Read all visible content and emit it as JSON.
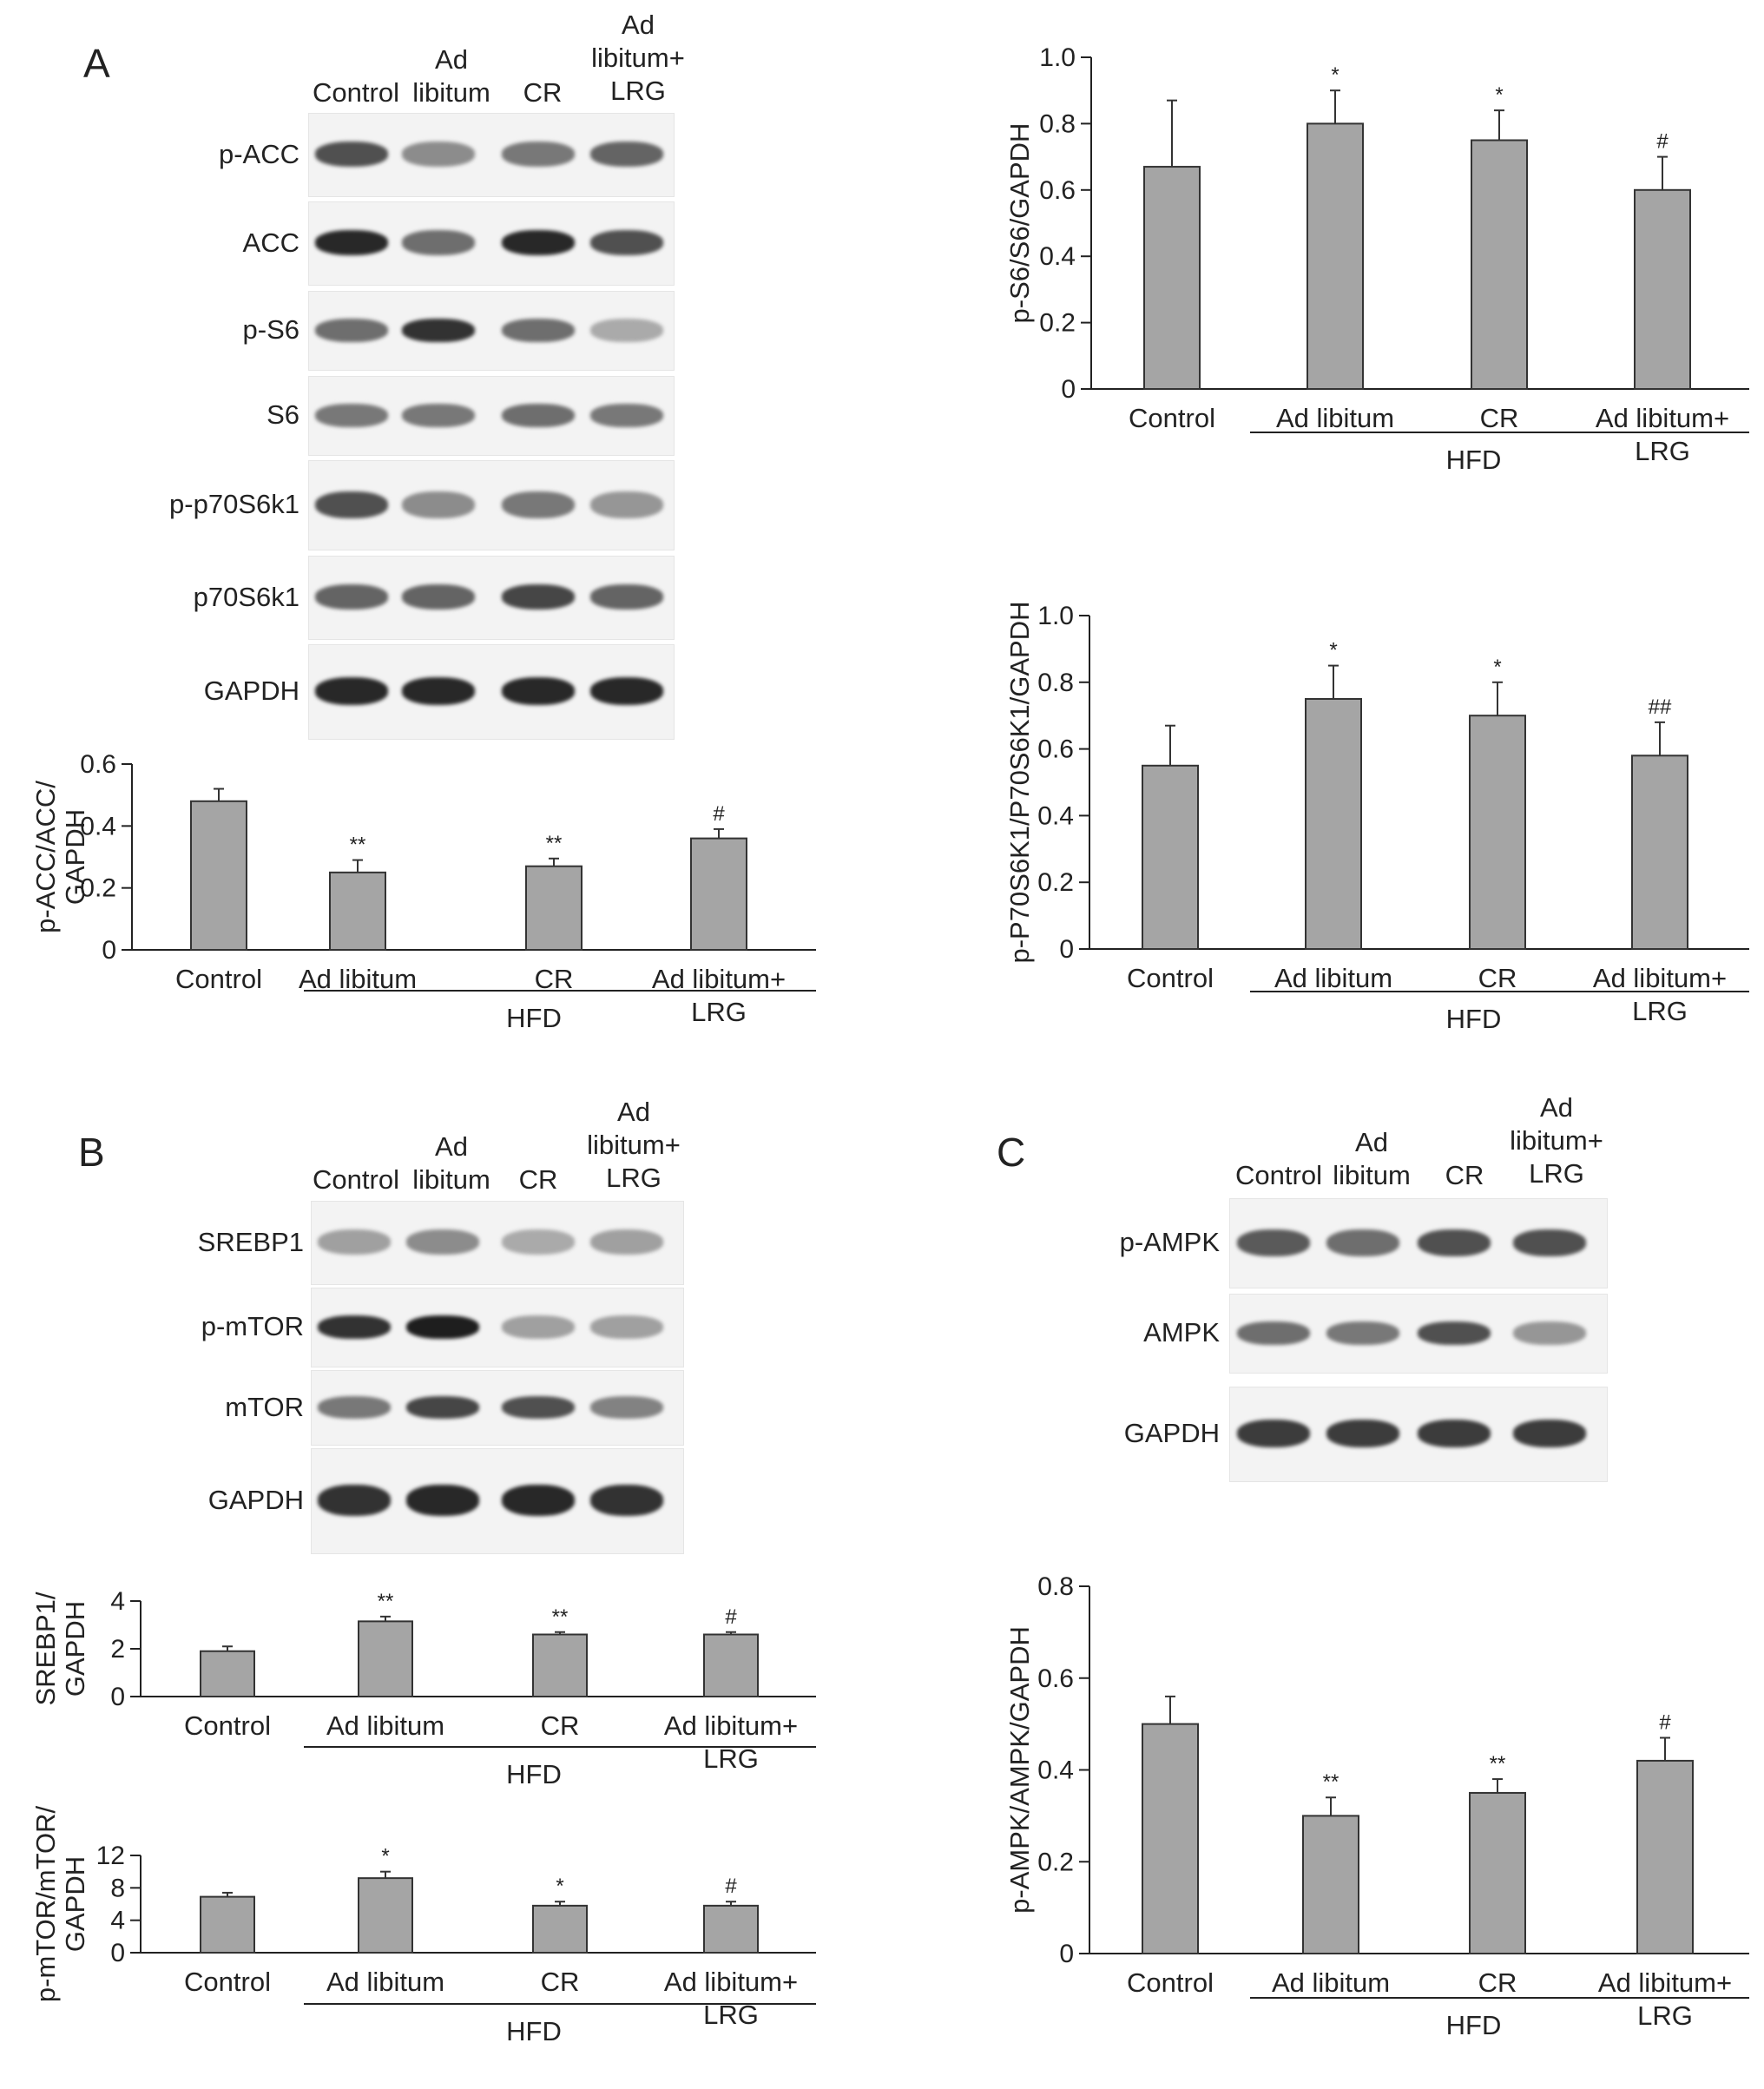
{
  "panels": {
    "A": {
      "letter": "A",
      "lanes": [
        "Control",
        "Ad libitum",
        "CR",
        "Ad libitum+ LRG"
      ],
      "rows": [
        "p-ACC",
        "ACC",
        "p-S6",
        "S6",
        "p-p70S6k1",
        "p70S6k1",
        "GAPDH"
      ]
    },
    "B": {
      "letter": "B",
      "lanes": [
        "Control",
        "Ad libitum",
        "CR",
        "Ad libitum+ LRG"
      ],
      "rows": [
        "SREBP1",
        "p-mTOR",
        "mTOR",
        "GAPDH"
      ]
    },
    "C": {
      "letter": "C",
      "lanes": [
        "Control",
        "Ad libitum",
        "CR",
        "Ad libitum+ LRG"
      ],
      "rows": [
        "p-AMPK",
        "AMPK",
        "GAPDH"
      ]
    }
  },
  "bar_color": "#a5a5a5",
  "chart_data": [
    {
      "id": "pacc",
      "type": "bar",
      "categories": [
        "Control",
        "Ad libitum",
        "CR",
        "Ad libitum+ LRG"
      ],
      "values": [
        0.48,
        0.25,
        0.27,
        0.36
      ],
      "errors": [
        0.04,
        0.04,
        0.025,
        0.03
      ],
      "annotations": [
        "",
        "**",
        "**",
        "#"
      ],
      "ylabel": "p-ACC/ACC/ GAPDH",
      "group_label": "HFD",
      "ylim": [
        0,
        0.6
      ],
      "yticks": [
        0,
        0.2,
        0.4,
        0.6
      ],
      "ytick_labels": [
        "0",
        "0.2",
        "0.4",
        "0.6"
      ]
    },
    {
      "id": "ps6",
      "type": "bar",
      "categories": [
        "Control",
        "Ad libitum",
        "CR",
        "Ad libitum+ LRG"
      ],
      "values": [
        0.67,
        0.8,
        0.75,
        0.6
      ],
      "errors": [
        0.2,
        0.1,
        0.09,
        0.1
      ],
      "annotations": [
        "",
        "*",
        "*",
        "#"
      ],
      "ylabel": "p-S6/S6/GAPDH",
      "group_label": "HFD",
      "ylim": [
        0,
        1.0
      ],
      "yticks": [
        0,
        0.2,
        0.4,
        0.6,
        0.8,
        1.0
      ],
      "ytick_labels": [
        "0",
        "0.2",
        "0.4",
        "0.6",
        "0.8",
        "1.0"
      ]
    },
    {
      "id": "pp70",
      "type": "bar",
      "categories": [
        "Control",
        "Ad libitum",
        "CR",
        "Ad libitum+ LRG"
      ],
      "values": [
        0.55,
        0.75,
        0.7,
        0.58
      ],
      "errors": [
        0.12,
        0.1,
        0.1,
        0.1
      ],
      "annotations": [
        "",
        "*",
        "*",
        "##"
      ],
      "ylabel": "p-P70S6K1/P70S6K1/GAPDH",
      "group_label": "HFD",
      "ylim": [
        0,
        1.0
      ],
      "yticks": [
        0,
        0.2,
        0.4,
        0.6,
        0.8,
        1.0
      ],
      "ytick_labels": [
        "0",
        "0.2",
        "0.4",
        "0.6",
        "0.8",
        "1.0"
      ]
    },
    {
      "id": "srebp1",
      "type": "bar",
      "categories": [
        "Control",
        "Ad libitum",
        "CR",
        "Ad libitum+ LRG"
      ],
      "values": [
        1.9,
        3.15,
        2.6,
        2.6
      ],
      "errors": [
        0.2,
        0.2,
        0.1,
        0.1
      ],
      "annotations": [
        "",
        "**",
        "**",
        "#"
      ],
      "ylabel": "SREBP1/ GAPDH",
      "group_label": "HFD",
      "ylim": [
        0,
        4
      ],
      "yticks": [
        0,
        2,
        4
      ],
      "ytick_labels": [
        "0",
        "2",
        "4"
      ]
    },
    {
      "id": "pmtor",
      "type": "bar",
      "categories": [
        "Control",
        "Ad libitum",
        "CR",
        "Ad libitum+ LRG"
      ],
      "values": [
        6.9,
        9.2,
        5.8,
        5.8
      ],
      "errors": [
        0.5,
        0.8,
        0.5,
        0.5
      ],
      "annotations": [
        "",
        "*",
        "*",
        "#"
      ],
      "ylabel": "p-mTOR/mTOR/ GAPDH",
      "group_label": "HFD",
      "ylim": [
        0,
        12
      ],
      "yticks": [
        0,
        4,
        8,
        12
      ],
      "ytick_labels": [
        "0",
        "4",
        "8",
        "12"
      ]
    },
    {
      "id": "pampk",
      "type": "bar",
      "categories": [
        "Control",
        "Ad libitum",
        "CR",
        "Ad libitum+ LRG"
      ],
      "values": [
        0.5,
        0.3,
        0.35,
        0.42
      ],
      "errors": [
        0.06,
        0.04,
        0.03,
        0.05
      ],
      "annotations": [
        "",
        "**",
        "**",
        "#"
      ],
      "ylabel": "p-AMPK/AMPK/GAPDH",
      "group_label": "HFD",
      "ylim": [
        0,
        0.8
      ],
      "yticks": [
        0,
        0.2,
        0.4,
        0.6,
        0.8
      ],
      "ytick_labels": [
        "0",
        "0.2",
        "0.4",
        "0.6",
        "0.8"
      ]
    }
  ]
}
